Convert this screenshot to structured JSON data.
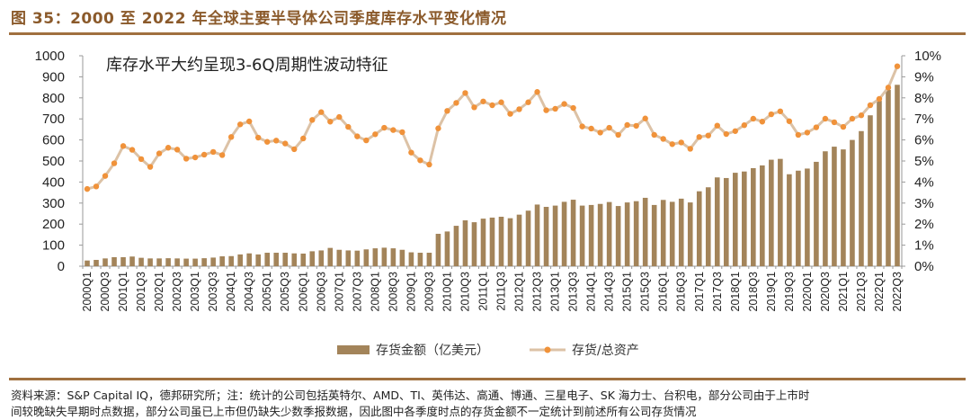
{
  "header": {
    "title": "图 35：2000 至 2022 年全球主要半导体公司季度库存水平变化情况"
  },
  "footer": {
    "line1": "资料来源：S&P Capital IQ，德邦研究所；注：统计的公司包括英特尔、AMD、TI、英伟达、高通、博通、三星电子、SK 海力士、台积电，部分公司由于上市时",
    "line2": "间较晚缺失早期时点数据，部分公司虽已上市但仍缺失少数季报数据，因此图中各季度时点的存货金额不一定统计到前述所有公司存货情况"
  },
  "chart_data": {
    "type": "bar+line",
    "title": "",
    "annotation": "库存水平大约呈现3-6Q周期性波动特征",
    "left_axis": {
      "ylim": [
        0,
        1000
      ],
      "ticks": [
        "0",
        "100",
        "200",
        "300",
        "400",
        "500",
        "600",
        "700",
        "800",
        "900",
        "1000"
      ]
    },
    "right_axis": {
      "ylim": [
        0,
        10
      ],
      "ticks": [
        "0%",
        "1%",
        "2%",
        "3%",
        "4%",
        "5%",
        "6%",
        "7%",
        "8%",
        "9%",
        "10%"
      ]
    },
    "legend_position": "bottom",
    "grid": false,
    "colors": {
      "bar": "#a3845a",
      "line": "#dcc2a6",
      "marker": "#f0923a",
      "title": "#8b5a2b"
    },
    "categories_start": "2000Q1",
    "categories_end": "2022Q3",
    "x_tick_labels": [
      "2000Q1",
      "2000Q3",
      "2001Q1",
      "2001Q3",
      "2002Q1",
      "2002Q3",
      "2003Q1",
      "2003Q3",
      "2004Q1",
      "2004Q3",
      "2005Q1",
      "2005Q3",
      "2006Q1",
      "2006Q3",
      "2007Q1",
      "2007Q3",
      "2008Q1",
      "2008Q3",
      "2009Q1",
      "2009Q3",
      "2010Q1",
      "2010Q3",
      "2011Q1",
      "2011Q3",
      "2012Q1",
      "2012Q3",
      "2013Q1",
      "2013Q3",
      "2014Q1",
      "2014Q3",
      "2015Q1",
      "2015Q3",
      "2016Q1",
      "2016Q3",
      "2017Q1",
      "2017Q3",
      "2018Q1",
      "2018Q3",
      "2019Q1",
      "2019Q3",
      "2020Q1",
      "2020Q3",
      "2021Q1",
      "2021Q3",
      "2022Q1",
      "2022Q3"
    ],
    "series": [
      {
        "name": "存货金额（亿美元）",
        "type": "bar",
        "axis": "left",
        "values": [
          27,
          30,
          37,
          43,
          43,
          46,
          40,
          37,
          37,
          38,
          37,
          36,
          36,
          38,
          41,
          47,
          48,
          56,
          61,
          56,
          64,
          64,
          64,
          61,
          60,
          71,
          75,
          87,
          78,
          75,
          74,
          80,
          85,
          88,
          85,
          78,
          66,
          64,
          64,
          154,
          165,
          192,
          218,
          209,
          226,
          231,
          235,
          228,
          245,
          264,
          293,
          282,
          288,
          306,
          316,
          288,
          291,
          296,
          305,
          286,
          303,
          309,
          325,
          291,
          315,
          306,
          321,
          303,
          356,
          375,
          422,
          419,
          444,
          450,
          466,
          479,
          506,
          510,
          437,
          454,
          464,
          496,
          546,
          568,
          555,
          600,
          642,
          717,
          786,
          838,
          862
        ]
      },
      {
        "name": "存货/总资产",
        "type": "line",
        "axis": "right",
        "unit": "%",
        "values": [
          3.67,
          3.79,
          4.29,
          4.89,
          5.71,
          5.53,
          5.09,
          4.72,
          5.36,
          5.63,
          5.54,
          5.11,
          5.17,
          5.3,
          5.43,
          5.28,
          6.14,
          6.74,
          6.88,
          6.11,
          5.91,
          5.97,
          5.83,
          5.56,
          6.07,
          6.95,
          7.32,
          6.87,
          7.09,
          6.62,
          6.17,
          5.98,
          6.27,
          6.58,
          6.47,
          6.37,
          5.4,
          5.03,
          4.83,
          6.55,
          7.38,
          7.76,
          8.23,
          7.55,
          7.83,
          7.65,
          7.79,
          7.24,
          7.46,
          7.79,
          8.28,
          7.41,
          7.48,
          7.71,
          7.52,
          6.64,
          6.54,
          6.35,
          6.58,
          6.24,
          6.71,
          6.67,
          7.02,
          6.24,
          6.05,
          5.8,
          5.88,
          5.58,
          6.14,
          6.21,
          6.68,
          6.28,
          6.42,
          6.7,
          7.01,
          6.87,
          7.22,
          7.36,
          6.89,
          6.24,
          6.35,
          6.6,
          7.01,
          6.84,
          6.62,
          7.01,
          7.17,
          7.65,
          7.95,
          8.49,
          9.5
        ]
      }
    ]
  }
}
